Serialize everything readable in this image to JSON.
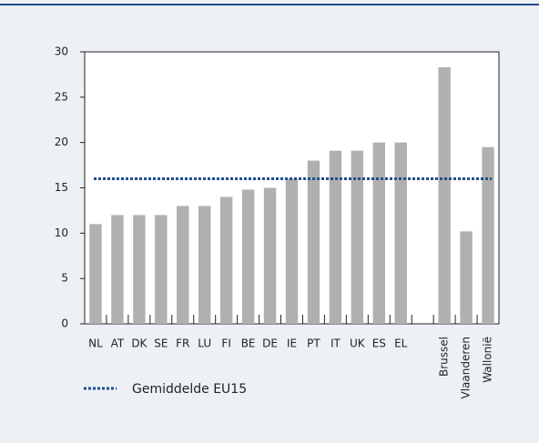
{
  "chart_data": {
    "type": "bar",
    "categories": [
      "NL",
      "AT",
      "DK",
      "SE",
      "FR",
      "LU",
      "FI",
      "BE",
      "DE",
      "IE",
      "PT",
      "IT",
      "UK",
      "ES",
      "EL",
      null,
      "Brussel",
      "Vlaanderen",
      "Wallonië"
    ],
    "values": [
      11,
      12,
      12,
      12,
      13,
      13,
      14,
      14.8,
      15,
      16,
      18,
      19.1,
      19.1,
      20,
      20,
      null,
      28.3,
      10.2,
      19.5
    ],
    "color": "#b0b0b0",
    "ylim": [
      0,
      30
    ],
    "yticks": [
      0,
      5,
      10,
      15,
      20,
      25,
      30
    ],
    "reference": {
      "name": "Gemiddelde EU15",
      "value": 16,
      "color": "#1f4e8c"
    }
  }
}
